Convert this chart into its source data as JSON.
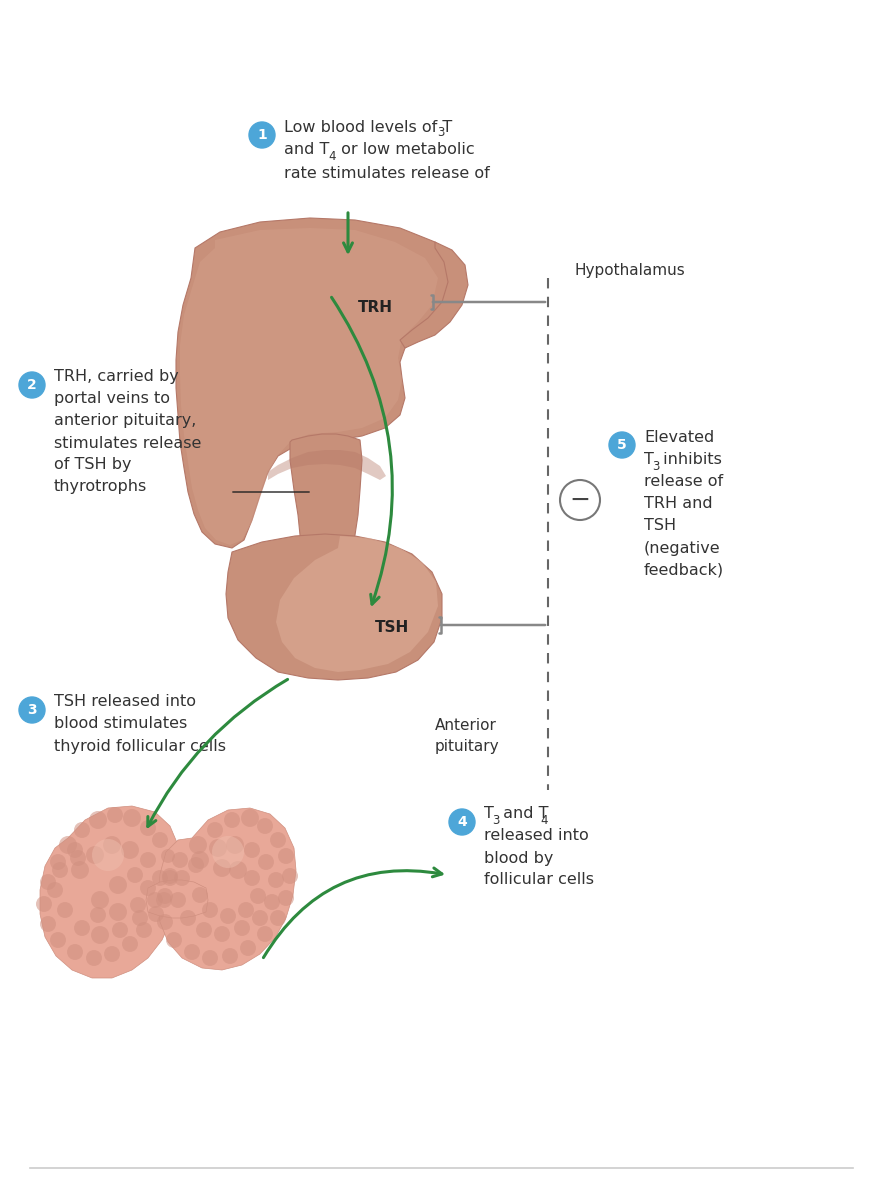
{
  "bg_color": "#ffffff",
  "green": "#2d8a3e",
  "gray": "#888888",
  "badge_color": "#4da6d8",
  "badge_text_color": "#ffffff",
  "text_color": "#333333",
  "brain_main": "#c8907a",
  "brain_dark": "#b57868",
  "brain_light": "#d4a08a",
  "brain_highlight": "#e0b09a",
  "thyroid_base": "#e8a898",
  "thyroid_dark": "#d09080",
  "thyroid_light": "#f0c0b0",
  "sep_color": "#cccccc",
  "minus_circle_edge": "#777777",
  "step1_lines": [
    "Low blood levels of T₃",
    "and T₄ or low metabolic",
    "rate stimulates release of"
  ],
  "step2_lines": [
    "TRH, carried by",
    "portal veins to",
    "anterior pituitary,",
    "stimulates release",
    "of TSH by",
    "thyrotrophs"
  ],
  "step3_lines": [
    "TSH released into",
    "blood stimulates",
    "thyroid follicular cells"
  ],
  "step4_line1a": "T",
  "step4_line1b": "3",
  "step4_line1c": " and T",
  "step4_line1d": "4",
  "step4_lines": [
    "released into",
    "blood by",
    "follicular cells"
  ],
  "step5_line1a": "Elevated",
  "step5_line2a": "T",
  "step5_line2b": "3",
  "step5_line2c": " inhibits",
  "step5_lines": [
    "release of",
    "TRH and",
    "TSH",
    "(negative",
    "feedback)"
  ],
  "hypothalamus_label": "Hypothalamus",
  "anterior_pituitary_label": "Anterior\npituitary",
  "trh_label": "TRH",
  "tsh_label": "TSH",
  "minus_symbol": "−"
}
